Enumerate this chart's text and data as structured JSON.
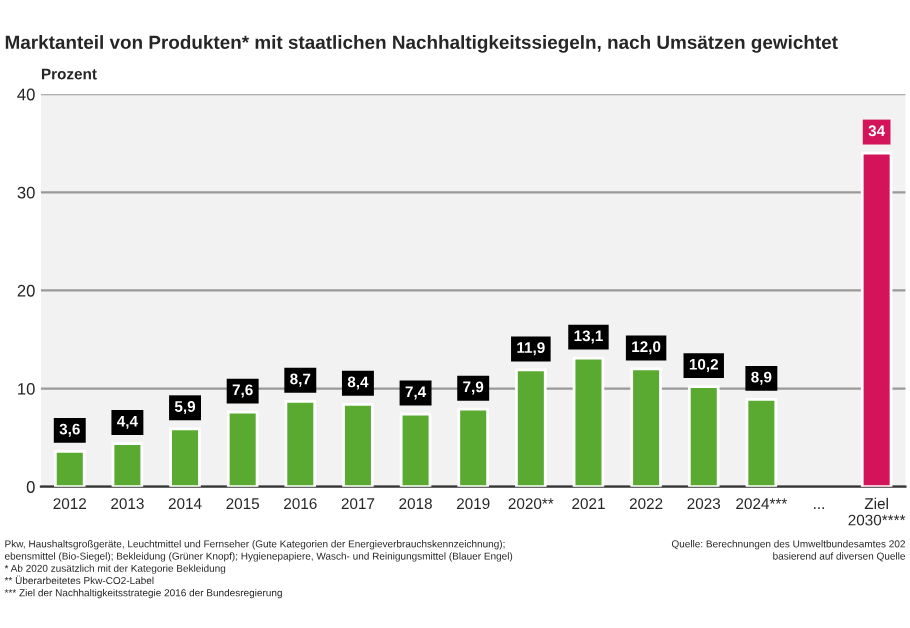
{
  "chart_data": {
    "type": "bar",
    "title": "Marktanteil von Produkten* mit staatlichen Nachhaltigkeitssiegeln, nach Umsätzen gewichtet",
    "ylabel": "Prozent",
    "categories": [
      "2012",
      "2013",
      "2014",
      "2015",
      "2016",
      "2017",
      "2018",
      "2019",
      "2020**",
      "2021",
      "2022",
      "2023",
      "2024***",
      "...",
      "Ziel\n2030****"
    ],
    "values": [
      3.6,
      4.4,
      5.9,
      7.6,
      8.7,
      8.4,
      7.4,
      7.9,
      11.9,
      13.1,
      12.0,
      10.2,
      8.9,
      null,
      34
    ],
    "colors": [
      "#5aaa32",
      "#5aaa32",
      "#5aaa32",
      "#5aaa32",
      "#5aaa32",
      "#5aaa32",
      "#5aaa32",
      "#5aaa32",
      "#5aaa32",
      "#5aaa32",
      "#5aaa32",
      "#5aaa32",
      "#5aaa32",
      "#5aaa32",
      "#d4145a"
    ],
    "value_labels": [
      "3,6",
      "4,4",
      "5,9",
      "7,6",
      "8,7",
      "8,4",
      "7,4",
      "7,9",
      "11,9",
      "13,1",
      "12,0",
      "10,2",
      "8,9",
      null,
      "34"
    ],
    "ylim": [
      0,
      40
    ],
    "yticks": [
      0,
      10,
      20,
      30,
      40
    ],
    "grid": "y",
    "annotations": [
      "Pkw, Haushaltsgroßgeräte, Leuchtmittel und Fernseher (Gute Kategorien der Energieverbrauchskennzeichnung);\nebensmittel (Bio-Siegel); Bekleidung (Grüner Knopf); Hygienepapiere, Wasch- und Reinigungsmittel (Blauer Engel)\n* Ab 2020 zusätzlich mit der Kategorie Bekleidung\n** Überarbeitetes Pkw-CO2-Label\n*** Ziel der Nachhaltigkeitsstrategie 2016 der Bundesregierung",
      "Quelle: Berechnungen des Umweltbundesamtes 202\nbasierend auf diversen Quelle"
    ]
  }
}
